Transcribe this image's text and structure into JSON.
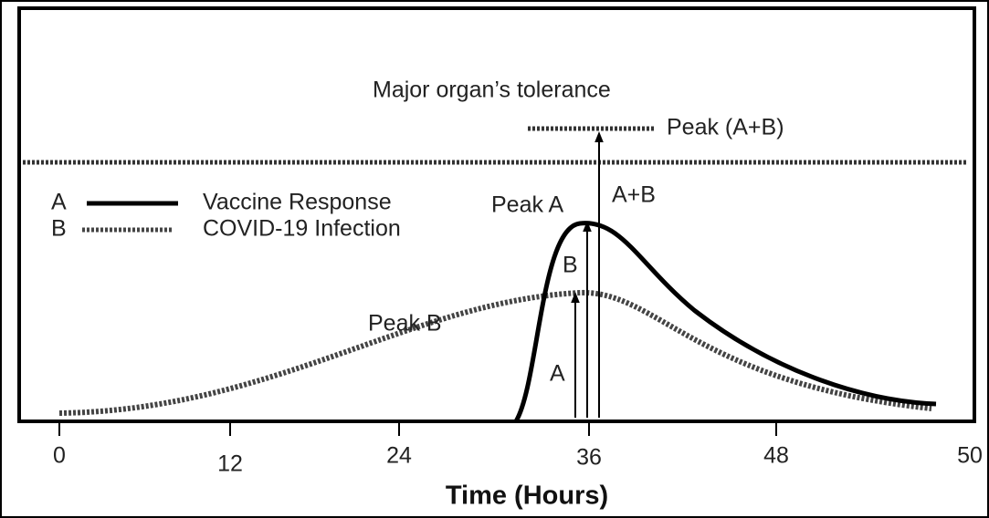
{
  "title": "Major organ’s tolerance",
  "labels": {
    "peak_ab": "Peak (A+B)",
    "ab": "A+B",
    "peak_a": "Peak A",
    "b": "B",
    "a": "A",
    "peak_b": "Peak B"
  },
  "legend": [
    {
      "key": "A",
      "name": "Vaccine Response"
    },
    {
      "key": "B",
      "name": "COVID-19 Infection"
    }
  ],
  "x_axis": {
    "label": "Time (Hours)",
    "ticks": [
      "0",
      "12",
      "24",
      "36",
      "48",
      "50"
    ]
  }
}
